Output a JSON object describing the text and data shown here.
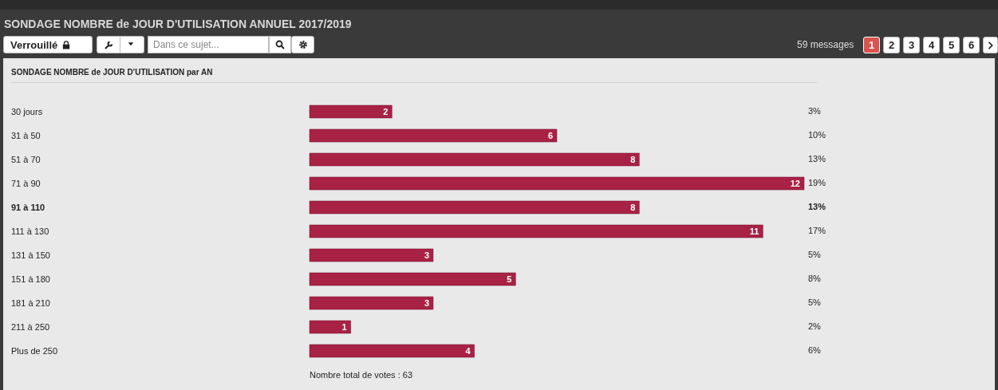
{
  "chart_data": {
    "type": "bar",
    "orientation": "horizontal",
    "title": "SONDAGE NOMBRE de JOUR D'UTILISATION ANNUEL 2017/2019",
    "subtitle": "SONDAGE NOMBRE de JOUR D'UTILISATION par AN",
    "categories": [
      "30 jours",
      "31 à 50",
      "51 à 70",
      "71 à 90",
      "91 à 110",
      "111 à 130",
      "131 à 150",
      "151 à 180",
      "181 à 210",
      "211 à 250",
      "Plus de 250"
    ],
    "values": [
      2,
      6,
      8,
      12,
      8,
      11,
      3,
      5,
      3,
      1,
      4
    ],
    "color": "#a82245",
    "data_labels": true,
    "legend": false,
    "grid": false,
    "annotations": [
      "Verrouillé",
      "Dans ce sujet...",
      "59 messages",
      "1",
      "2",
      "3",
      "4",
      "5",
      "6",
      "3%",
      "10%",
      "13%",
      "19%",
      "13%",
      "17%",
      "5%",
      "8%",
      "5%",
      "2%",
      "6%",
      "Nombre total de votes : 63"
    ]
  }
}
